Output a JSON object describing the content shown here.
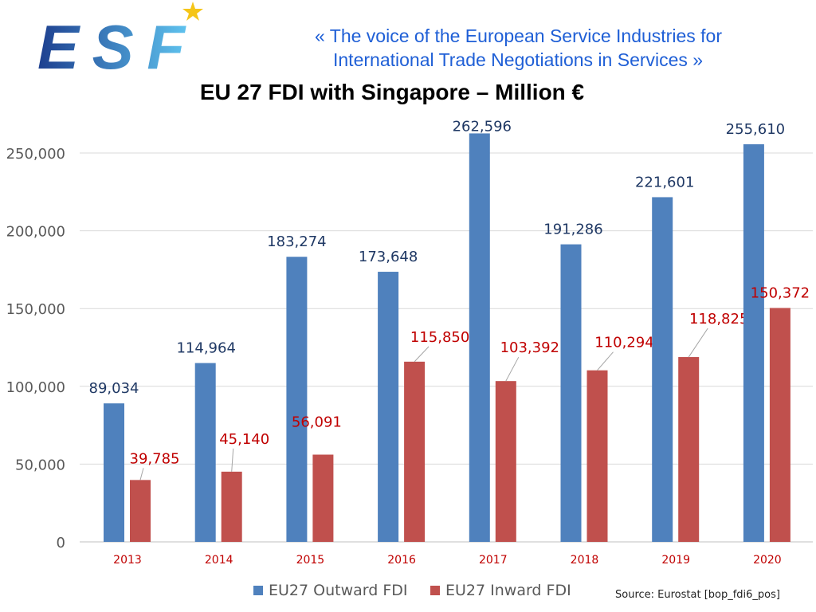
{
  "header": {
    "logo_text": "ESF",
    "tagline_line1": "« The voice of the European Service Industries for",
    "tagline_line2": "International Trade Negotiations in Services »"
  },
  "source": "Source: Eurostat [bop_fdi6_pos]",
  "colors": {
    "outward": "#4f81bd",
    "inward": "#c0504d",
    "tagline": "#1f5fd6",
    "outward_label": "#1f3864",
    "inward_label": "#c00000",
    "year_label": "#c00000"
  },
  "chart_data": {
    "type": "bar",
    "title": "EU 27 FDI with Singapore – Million €",
    "categories": [
      "2013",
      "2014",
      "2015",
      "2016",
      "2017",
      "2018",
      "2019",
      "2020"
    ],
    "series": [
      {
        "name": "EU27 Outward FDI",
        "values": [
          89034,
          114964,
          183274,
          173648,
          262596,
          191286,
          221601,
          255610
        ],
        "labels": [
          "89,034",
          "114,964",
          "183,274",
          "173,648",
          "262,596",
          "191,286",
          "221,601",
          "255,610"
        ]
      },
      {
        "name": "EU27 Inward FDI",
        "values": [
          39785,
          45140,
          56091,
          115850,
          103392,
          110294,
          118825,
          150372
        ],
        "labels": [
          "39,785",
          "45,140",
          "56,091",
          "115,850",
          "103,392",
          "110,294",
          "118,825",
          "150,372"
        ]
      }
    ],
    "ylim": [
      0,
      250000
    ],
    "yticks": [
      "0",
      "50,000",
      "100,000",
      "150,000",
      "200,000",
      "250,000"
    ],
    "ytick_values": [
      0,
      50000,
      100000,
      150000,
      200000,
      250000
    ],
    "grid": true,
    "legend": "bottom"
  }
}
